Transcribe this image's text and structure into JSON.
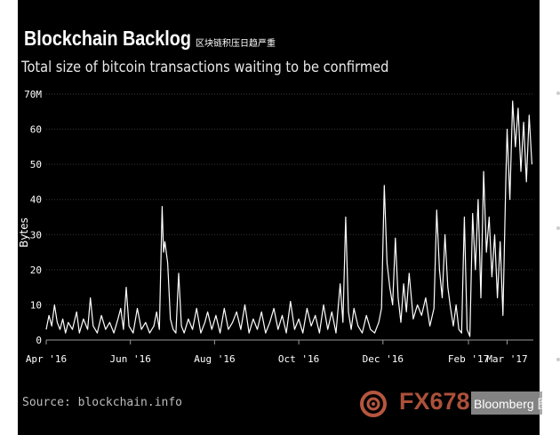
{
  "title": "Blockchain Backlog",
  "title_cn": "区块链积压日趋严重",
  "subtitle": "Total size of bitcoin transactions waiting to be confirmed",
  "source": "Source: blockchain.info",
  "watermark": {
    "text": "FX678",
    "badge": "Bloomberg",
    "badge_mark": "图"
  },
  "colors": {
    "background": "#000000",
    "line": "#ffffff",
    "grid": "#3a3a3a",
    "text": "#ffffff",
    "watermark": "#e46b4e"
  },
  "chart_data": {
    "type": "line",
    "title": "Blockchain Backlog",
    "subtitle": "Total size of bitcoin transactions waiting to be confirmed",
    "ylabel": "Bytes",
    "xlabel": "",
    "ylim": [
      0,
      70
    ],
    "yticks": [
      {
        "value": 0,
        "label": "0"
      },
      {
        "value": 10,
        "label": "10"
      },
      {
        "value": 20,
        "label": "20"
      },
      {
        "value": 30,
        "label": "30"
      },
      {
        "value": 40,
        "label": "40"
      },
      {
        "value": 50,
        "label": "50"
      },
      {
        "value": 60,
        "label": "60"
      },
      {
        "value": 70,
        "label": "70M"
      }
    ],
    "xlim": [
      "2016-04-01",
      "2017-03-20"
    ],
    "xticks": [
      {
        "date": "2016-04-01",
        "label": "Apr '16"
      },
      {
        "date": "2016-06-01",
        "label": "Jun '16"
      },
      {
        "date": "2016-08-01",
        "label": "Aug '16"
      },
      {
        "date": "2016-10-01",
        "label": "Oct '16"
      },
      {
        "date": "2016-12-01",
        "label": "Dec '16"
      },
      {
        "date": "2017-02-01",
        "label": "Feb '17"
      },
      {
        "date": "2017-03-01",
        "label": "Mar '17"
      }
    ],
    "grid": true,
    "series": [
      {
        "values": [
          [
            "2016-04-01",
            3
          ],
          [
            "2016-04-03",
            7
          ],
          [
            "2016-04-05",
            4
          ],
          [
            "2016-04-07",
            10
          ],
          [
            "2016-04-09",
            5
          ],
          [
            "2016-04-11",
            3
          ],
          [
            "2016-04-13",
            6
          ],
          [
            "2016-04-15",
            2
          ],
          [
            "2016-04-17",
            5
          ],
          [
            "2016-04-20",
            3
          ],
          [
            "2016-04-23",
            8
          ],
          [
            "2016-04-25",
            2
          ],
          [
            "2016-04-28",
            6
          ],
          [
            "2016-05-01",
            3
          ],
          [
            "2016-05-03",
            12
          ],
          [
            "2016-05-05",
            4
          ],
          [
            "2016-05-08",
            2
          ],
          [
            "2016-05-11",
            7
          ],
          [
            "2016-05-14",
            3
          ],
          [
            "2016-05-17",
            5
          ],
          [
            "2016-05-20",
            2
          ],
          [
            "2016-05-23",
            6
          ],
          [
            "2016-05-25",
            9
          ],
          [
            "2016-05-27",
            3
          ],
          [
            "2016-05-29",
            15
          ],
          [
            "2016-05-31",
            4
          ],
          [
            "2016-06-03",
            2
          ],
          [
            "2016-06-06",
            9
          ],
          [
            "2016-06-09",
            3
          ],
          [
            "2016-06-12",
            5
          ],
          [
            "2016-06-15",
            2
          ],
          [
            "2016-06-18",
            4
          ],
          [
            "2016-06-20",
            8
          ],
          [
            "2016-06-22",
            3
          ],
          [
            "2016-06-24",
            38
          ],
          [
            "2016-06-25",
            25
          ],
          [
            "2016-06-26",
            28
          ],
          [
            "2016-06-28",
            22
          ],
          [
            "2016-06-30",
            6
          ],
          [
            "2016-07-02",
            3
          ],
          [
            "2016-07-04",
            2
          ],
          [
            "2016-07-06",
            19
          ],
          [
            "2016-07-08",
            4
          ],
          [
            "2016-07-10",
            2
          ],
          [
            "2016-07-13",
            6
          ],
          [
            "2016-07-16",
            3
          ],
          [
            "2016-07-19",
            9
          ],
          [
            "2016-07-22",
            2
          ],
          [
            "2016-07-25",
            5
          ],
          [
            "2016-07-27",
            8
          ],
          [
            "2016-07-30",
            3
          ],
          [
            "2016-08-02",
            7
          ],
          [
            "2016-08-05",
            2
          ],
          [
            "2016-08-08",
            9
          ],
          [
            "2016-08-11",
            3
          ],
          [
            "2016-08-14",
            5
          ],
          [
            "2016-08-17",
            8
          ],
          [
            "2016-08-20",
            3
          ],
          [
            "2016-08-23",
            10
          ],
          [
            "2016-08-26",
            2
          ],
          [
            "2016-08-29",
            6
          ],
          [
            "2016-09-01",
            3
          ],
          [
            "2016-09-04",
            8
          ],
          [
            "2016-09-07",
            2
          ],
          [
            "2016-09-10",
            5
          ],
          [
            "2016-09-13",
            9
          ],
          [
            "2016-09-16",
            3
          ],
          [
            "2016-09-19",
            7
          ],
          [
            "2016-09-22",
            2
          ],
          [
            "2016-09-25",
            11
          ],
          [
            "2016-09-28",
            3
          ],
          [
            "2016-10-01",
            6
          ],
          [
            "2016-10-04",
            2
          ],
          [
            "2016-10-07",
            9
          ],
          [
            "2016-10-10",
            4
          ],
          [
            "2016-10-13",
            7
          ],
          [
            "2016-10-16",
            2
          ],
          [
            "2016-10-19",
            10
          ],
          [
            "2016-10-22",
            3
          ],
          [
            "2016-10-25",
            8
          ],
          [
            "2016-10-28",
            2
          ],
          [
            "2016-10-31",
            16
          ],
          [
            "2016-11-02",
            5
          ],
          [
            "2016-11-04",
            35
          ],
          [
            "2016-11-06",
            8
          ],
          [
            "2016-11-08",
            3
          ],
          [
            "2016-11-10",
            9
          ],
          [
            "2016-11-13",
            4
          ],
          [
            "2016-11-16",
            2
          ],
          [
            "2016-11-19",
            7
          ],
          [
            "2016-11-22",
            3
          ],
          [
            "2016-11-25",
            2
          ],
          [
            "2016-11-28",
            5
          ],
          [
            "2016-11-30",
            9
          ],
          [
            "2016-12-02",
            44
          ],
          [
            "2016-12-04",
            22
          ],
          [
            "2016-12-06",
            15
          ],
          [
            "2016-12-08",
            10
          ],
          [
            "2016-12-10",
            29
          ],
          [
            "2016-12-12",
            12
          ],
          [
            "2016-12-14",
            5
          ],
          [
            "2016-12-16",
            16
          ],
          [
            "2016-12-18",
            8
          ],
          [
            "2016-12-20",
            19
          ],
          [
            "2016-12-23",
            6
          ],
          [
            "2016-12-26",
            10
          ],
          [
            "2016-12-29",
            7
          ],
          [
            "2017-01-01",
            12
          ],
          [
            "2017-01-04",
            4
          ],
          [
            "2017-01-07",
            9
          ],
          [
            "2017-01-09",
            37
          ],
          [
            "2017-01-11",
            20
          ],
          [
            "2017-01-13",
            12
          ],
          [
            "2017-01-15",
            30
          ],
          [
            "2017-01-17",
            15
          ],
          [
            "2017-01-19",
            9
          ],
          [
            "2017-01-21",
            4
          ],
          [
            "2017-01-23",
            10
          ],
          [
            "2017-01-25",
            3
          ],
          [
            "2017-01-27",
            2
          ],
          [
            "2017-01-29",
            35
          ],
          [
            "2017-01-31",
            3
          ],
          [
            "2017-02-02",
            1
          ],
          [
            "2017-02-04",
            36
          ],
          [
            "2017-02-06",
            20
          ],
          [
            "2017-02-08",
            40
          ],
          [
            "2017-02-10",
            12
          ],
          [
            "2017-02-12",
            48
          ],
          [
            "2017-02-14",
            25
          ],
          [
            "2017-02-16",
            35
          ],
          [
            "2017-02-18",
            18
          ],
          [
            "2017-02-20",
            30
          ],
          [
            "2017-02-22",
            12
          ],
          [
            "2017-02-24",
            28
          ],
          [
            "2017-02-26",
            7
          ],
          [
            "2017-02-28",
            45
          ],
          [
            "2017-03-01",
            60
          ],
          [
            "2017-03-03",
            40
          ],
          [
            "2017-03-05",
            68
          ],
          [
            "2017-03-07",
            55
          ],
          [
            "2017-03-09",
            66
          ],
          [
            "2017-03-11",
            48
          ],
          [
            "2017-03-13",
            62
          ],
          [
            "2017-03-15",
            45
          ],
          [
            "2017-03-17",
            64
          ],
          [
            "2017-03-19",
            50
          ]
        ]
      }
    ]
  }
}
